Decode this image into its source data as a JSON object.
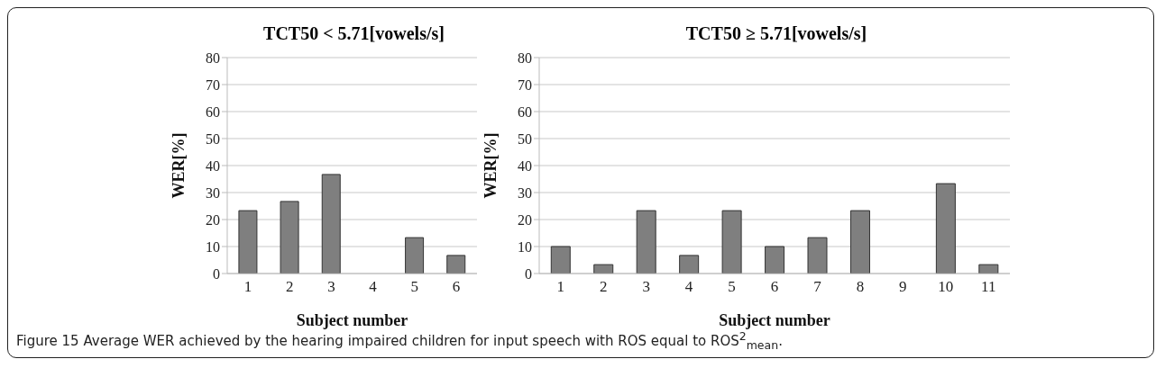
{
  "chart_data": [
    {
      "type": "bar",
      "title": "TCT50 < 5.71[vowels/s]",
      "xlabel": "Subject number",
      "ylabel": "WER[%]",
      "categories": [
        "1",
        "2",
        "3",
        "4",
        "5",
        "6"
      ],
      "values": [
        23.3,
        26.7,
        36.7,
        0,
        13.3,
        6.7
      ],
      "color": "#7f7f7f",
      "ylim": [
        0,
        80
      ],
      "yticks": [
        0,
        10,
        20,
        30,
        40,
        50,
        60,
        70,
        80
      ],
      "grid": "y",
      "annotations": [
        "Figure 15 Average WER achieved by the hearing impaired children for input speech with ROS equal to ROS$^{2}$$_{mean}$."
      ]
    },
    {
      "type": "bar",
      "title": "TCT50 ≥ 5.71[vowels/s]",
      "xlabel": "Subject number",
      "ylabel": "WER[%]",
      "categories": [
        "1",
        "2",
        "3",
        "4",
        "5",
        "6",
        "7",
        "8",
        "9",
        "10",
        "11"
      ],
      "values": [
        10,
        3.3,
        23.3,
        6.7,
        23.3,
        10,
        13.3,
        23.3,
        0,
        33.3,
        3.3
      ],
      "color": "#7f7f7f",
      "ylim": [
        0,
        80
      ],
      "yticks": [
        0,
        10,
        20,
        30,
        40,
        50,
        60,
        70,
        80
      ],
      "grid": "y"
    }
  ]
}
